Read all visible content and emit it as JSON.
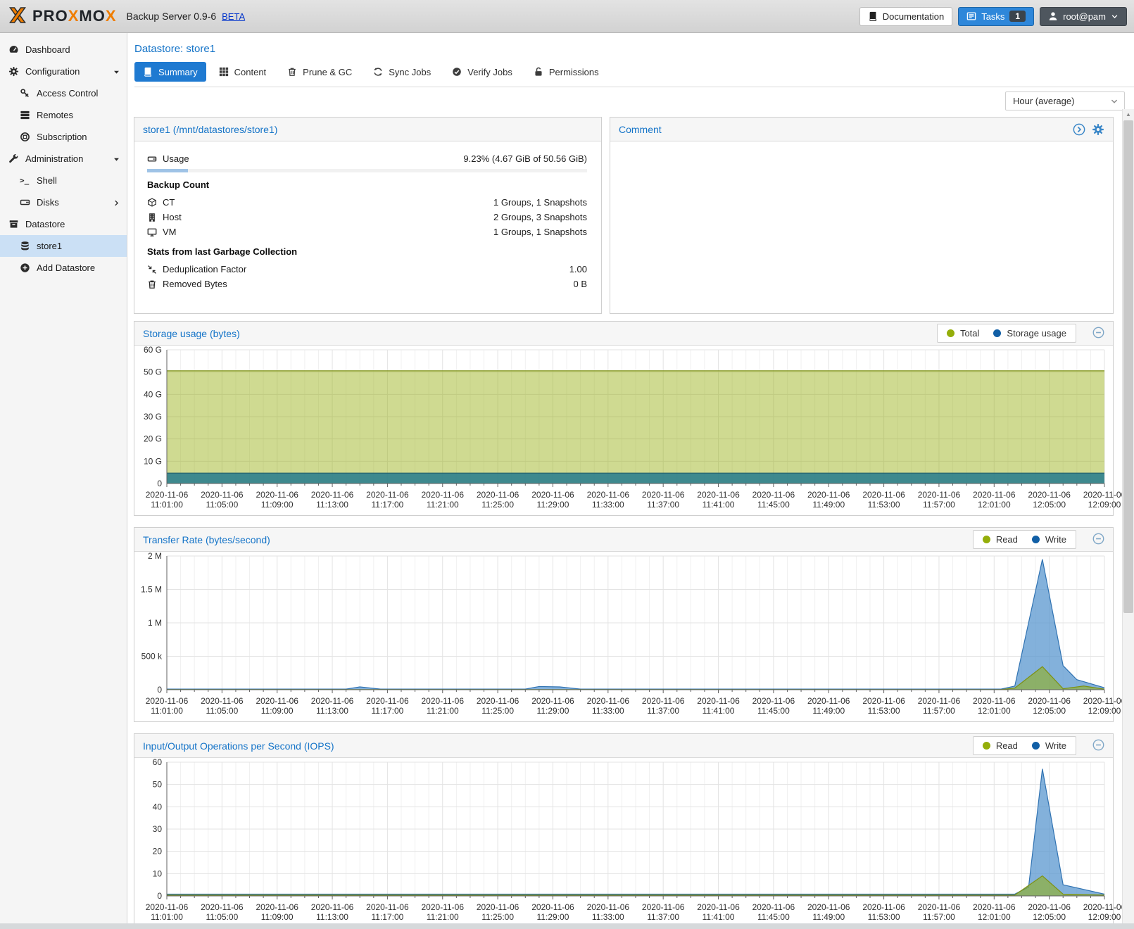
{
  "header": {
    "brand": "PROXMOX",
    "product": "Backup Server 0.9-6",
    "beta_label": "BETA",
    "documentation_label": "Documentation",
    "tasks_label": "Tasks",
    "tasks_count": "1",
    "user_label": "root@pam"
  },
  "page": {
    "title": "Datastore: store1",
    "period_selector": "Hour (average)"
  },
  "tabs": [
    {
      "label": "Summary",
      "icon": "book-icon",
      "active": true
    },
    {
      "label": "Content",
      "icon": "grid-icon",
      "active": false
    },
    {
      "label": "Prune & GC",
      "icon": "trash-icon",
      "active": false
    },
    {
      "label": "Sync Jobs",
      "icon": "sync-icon",
      "active": false
    },
    {
      "label": "Verify Jobs",
      "icon": "checkcircle-icon",
      "active": false
    },
    {
      "label": "Permissions",
      "icon": "unlock-icon",
      "active": false
    }
  ],
  "sidebar": {
    "items": [
      {
        "label": "Dashboard",
        "icon": "tachometer-icon",
        "level": 0
      },
      {
        "label": "Configuration",
        "icon": "gear-icon",
        "level": 0,
        "expander": "down"
      },
      {
        "label": "Access Control",
        "icon": "key-icon",
        "level": 1
      },
      {
        "label": "Remotes",
        "icon": "server-icon",
        "level": 1
      },
      {
        "label": "Subscription",
        "icon": "lifering-icon",
        "level": 1
      },
      {
        "label": "Administration",
        "icon": "wrench-icon",
        "level": 0,
        "expander": "down"
      },
      {
        "label": "Shell",
        "icon": "terminal-icon",
        "level": 1
      },
      {
        "label": "Disks",
        "icon": "hdd-icon",
        "level": 1,
        "expander": "right"
      },
      {
        "label": "Datastore",
        "icon": "archive-icon",
        "level": 0
      },
      {
        "label": "store1",
        "icon": "database-icon",
        "level": 1,
        "selected": true
      },
      {
        "label": "Add Datastore",
        "icon": "pluscircle-icon",
        "level": 1
      }
    ]
  },
  "store_panel": {
    "title": "store1 (/mnt/datastores/store1)",
    "usage": {
      "icon": "hdd-icon",
      "label": "Usage",
      "value": "9.23% (4.67 GiB of 50.56 GiB)",
      "percent": 9.23
    },
    "backup_count_heading": "Backup Count",
    "backup_rows": [
      {
        "icon": "cube-icon",
        "label": "CT",
        "value": "1 Groups, 1 Snapshots"
      },
      {
        "icon": "building-icon",
        "label": "Host",
        "value": "2 Groups, 3 Snapshots"
      },
      {
        "icon": "desktop-icon",
        "label": "VM",
        "value": "1 Groups, 1 Snapshots"
      }
    ],
    "gc_heading": "Stats from last Garbage Collection",
    "gc_rows": [
      {
        "icon": "compress-icon",
        "label": "Deduplication Factor",
        "value": "1.00"
      },
      {
        "icon": "trash-icon",
        "label": "Removed Bytes",
        "value": "0 B"
      }
    ]
  },
  "comment_panel": {
    "title": "Comment"
  },
  "chart_data": [
    {
      "type": "area",
      "title": "Storage usage (bytes)",
      "legend": [
        {
          "label": "Total",
          "color": "#94ae0a"
        },
        {
          "label": "Storage usage",
          "color": "#115fa6"
        }
      ],
      "ymax": 60,
      "yticks": [
        {
          "label": "60 G",
          "v": 60
        },
        {
          "label": "50 G",
          "v": 50
        },
        {
          "label": "40 G",
          "v": 40
        },
        {
          "label": "30 G",
          "v": 30
        },
        {
          "label": "20 G",
          "v": 20
        },
        {
          "label": "10 G",
          "v": 10
        },
        {
          "label": "0",
          "v": 0
        }
      ],
      "x_date": "2020-11-06",
      "x_times": [
        "11:01:00",
        "11:05:00",
        "11:09:00",
        "11:13:00",
        "11:17:00",
        "11:21:00",
        "11:25:00",
        "11:29:00",
        "11:33:00",
        "11:37:00",
        "11:41:00",
        "11:45:00",
        "11:49:00",
        "11:53:00",
        "11:57:00",
        "12:01:00",
        "12:05:00",
        "12:09:00"
      ],
      "xmax": 68,
      "series": [
        {
          "name": "Total",
          "fill": "#94ae0a",
          "opacity": 0.45,
          "line": "#7d9114",
          "points": [
            [
              0,
              50.56
            ],
            [
              68,
              50.56
            ]
          ]
        },
        {
          "name": "Storage usage",
          "fill": "#2e7f8e",
          "opacity": 0.9,
          "line": "#235f6b",
          "points": [
            [
              0,
              4.67
            ],
            [
              68,
              4.67
            ]
          ]
        }
      ]
    },
    {
      "type": "area",
      "title": "Transfer Rate (bytes/second)",
      "legend": [
        {
          "label": "Read",
          "color": "#94ae0a"
        },
        {
          "label": "Write",
          "color": "#115fa6"
        }
      ],
      "ymax": 2000000,
      "yticks": [
        {
          "label": "2 M",
          "v": 2000000
        },
        {
          "label": "1.5 M",
          "v": 1500000
        },
        {
          "label": "1 M",
          "v": 1000000
        },
        {
          "label": "500 k",
          "v": 500000
        },
        {
          "label": "0",
          "v": 0
        }
      ],
      "x_date": "2020-11-06",
      "x_times": [
        "11:01:00",
        "11:05:00",
        "11:09:00",
        "11:13:00",
        "11:17:00",
        "11:21:00",
        "11:25:00",
        "11:29:00",
        "11:33:00",
        "11:37:00",
        "11:41:00",
        "11:45:00",
        "11:49:00",
        "11:53:00",
        "11:57:00",
        "12:01:00",
        "12:05:00",
        "12:09:00"
      ],
      "xmax": 68,
      "series": [
        {
          "name": "Write",
          "fill": "#5a97cf",
          "opacity": 0.75,
          "line": "#3173b2",
          "points": [
            [
              0,
              9000
            ],
            [
              13,
              9000
            ],
            [
              14,
              42000
            ],
            [
              15.5,
              9000
            ],
            [
              26,
              9000
            ],
            [
              27,
              48000
            ],
            [
              28.5,
              42000
            ],
            [
              30,
              9000
            ],
            [
              60.5,
              9000
            ],
            [
              61.5,
              55000
            ],
            [
              63.5,
              1950000
            ],
            [
              65,
              360000
            ],
            [
              66,
              150000
            ],
            [
              68,
              30000
            ]
          ]
        },
        {
          "name": "Read",
          "fill": "#94ae0a",
          "opacity": 0.55,
          "line": "#7d9114",
          "points": [
            [
              0,
              1500
            ],
            [
              60.5,
              1500
            ],
            [
              61.5,
              25000
            ],
            [
              63.5,
              345000
            ],
            [
              65,
              15000
            ],
            [
              66.5,
              55000
            ],
            [
              68,
              8000
            ]
          ]
        }
      ]
    },
    {
      "type": "area",
      "title": "Input/Output Operations per Second (IOPS)",
      "legend": [
        {
          "label": "Read",
          "color": "#94ae0a"
        },
        {
          "label": "Write",
          "color": "#115fa6"
        }
      ],
      "ymax": 60,
      "yticks": [
        {
          "label": "60",
          "v": 60
        },
        {
          "label": "50",
          "v": 50
        },
        {
          "label": "40",
          "v": 40
        },
        {
          "label": "30",
          "v": 30
        },
        {
          "label": "20",
          "v": 20
        },
        {
          "label": "10",
          "v": 10
        },
        {
          "label": "0",
          "v": 0
        }
      ],
      "x_date": "2020-11-06",
      "x_times": [
        "11:01:00",
        "11:05:00",
        "11:09:00",
        "11:13:00",
        "11:17:00",
        "11:21:00",
        "11:25:00",
        "11:29:00",
        "11:33:00",
        "11:37:00",
        "11:41:00",
        "11:45:00",
        "11:49:00",
        "11:53:00",
        "11:57:00",
        "12:01:00",
        "12:05:00",
        "12:09:00"
      ],
      "xmax": 68,
      "series": [
        {
          "name": "Write",
          "fill": "#5a97cf",
          "opacity": 0.75,
          "line": "#3173b2",
          "points": [
            [
              0,
              0.8
            ],
            [
              61.5,
              0.8
            ],
            [
              62.5,
              4
            ],
            [
              63.5,
              57
            ],
            [
              65,
              5
            ],
            [
              68,
              0.8
            ]
          ]
        },
        {
          "name": "Read",
          "fill": "#94ae0a",
          "opacity": 0.55,
          "line": "#7d9114",
          "points": [
            [
              0,
              0.4
            ],
            [
              61.5,
              0.4
            ],
            [
              63.5,
              9
            ],
            [
              65,
              0.8
            ],
            [
              68,
              0.4
            ]
          ]
        }
      ]
    }
  ]
}
